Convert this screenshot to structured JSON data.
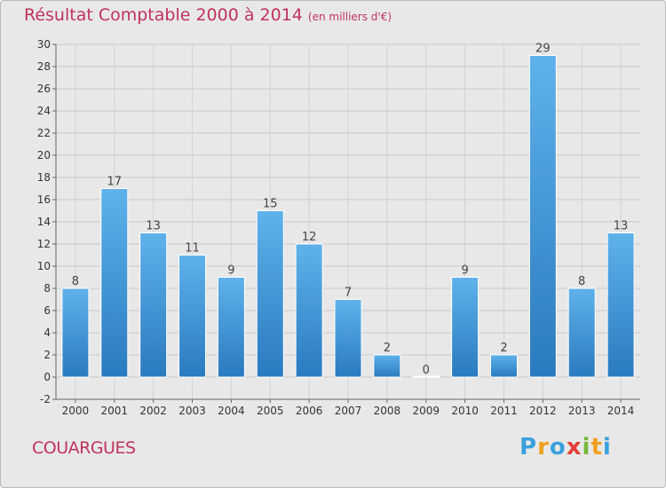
{
  "title": "Résultat Comptable 2000 à 2014",
  "subtitle": "(en milliers d'€)",
  "commune": "COUARGUES",
  "logo": {
    "letters": [
      "P",
      "r",
      "o",
      "x",
      "i",
      "t",
      "i"
    ],
    "colors": [
      "#3aa0dd",
      "#f0a020",
      "#3aa0dd",
      "#e0403a",
      "#78b83a",
      "#f0a020",
      "#3aa0dd"
    ]
  },
  "colors": {
    "bar_light": "#5aaee8",
    "bar_dark": "#2a7abf",
    "title": "#c0335c",
    "background": "#e8e8e8"
  },
  "chart_data": {
    "type": "bar",
    "title": "Résultat Comptable 2000 à 2014",
    "subtitle": "(en milliers d'€)",
    "categories": [
      "2000",
      "2001",
      "2002",
      "2003",
      "2004",
      "2005",
      "2006",
      "2007",
      "2008",
      "2009",
      "2010",
      "2011",
      "2012",
      "2013",
      "2014"
    ],
    "values": [
      8,
      17,
      13,
      11,
      9,
      15,
      12,
      7,
      2,
      0,
      9,
      2,
      29,
      8,
      13
    ],
    "ylim": [
      -2,
      30
    ],
    "yticks": [
      -2,
      0,
      2,
      4,
      6,
      8,
      10,
      12,
      14,
      16,
      18,
      20,
      22,
      24,
      26,
      28,
      30
    ],
    "grid": true,
    "xlabel": "",
    "ylabel": ""
  }
}
